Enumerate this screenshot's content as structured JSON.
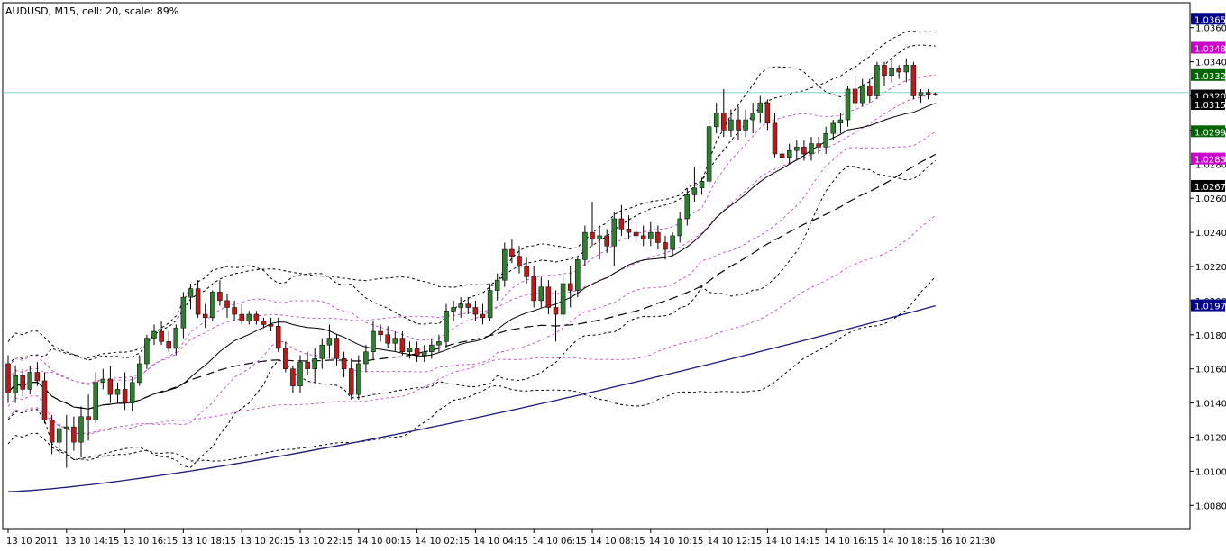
{
  "chart_data": {
    "type": "candlestick",
    "title": "AUDUSD, M15, cell: 20, scale: 89%",
    "ylim": [
      1.0068,
      1.0372
    ],
    "y_ticks": [
      "1.0360",
      "1.0340",
      "1.0320",
      "1.0300",
      "1.0280",
      "1.0260",
      "1.0240",
      "1.0220",
      "1.0200",
      "1.0180",
      "1.0160",
      "1.0140",
      "1.0120",
      "1.0100",
      "1.0080"
    ],
    "x_labels": [
      {
        "i": 0,
        "label": "13 10 2011"
      },
      {
        "i": 8,
        "label": "13 10 14:15"
      },
      {
        "i": 16,
        "label": "13 10 16:15"
      },
      {
        "i": 24,
        "label": "13 10 18:15"
      },
      {
        "i": 32,
        "label": "13 10 20:15"
      },
      {
        "i": 40,
        "label": "13 10 22:15"
      },
      {
        "i": 48,
        "label": "14 10 00:15"
      },
      {
        "i": 56,
        "label": "14 10 02:15"
      },
      {
        "i": 64,
        "label": "14 10 04:15"
      },
      {
        "i": 72,
        "label": "14 10 06:15"
      },
      {
        "i": 80,
        "label": "14 10 08:15"
      },
      {
        "i": 88,
        "label": "14 10 10:15"
      },
      {
        "i": 96,
        "label": "14 10 12:15"
      },
      {
        "i": 104,
        "label": "14 10 14:15"
      },
      {
        "i": 112,
        "label": "14 10 16:15"
      },
      {
        "i": 120,
        "label": "14 10 18:15"
      },
      {
        "i": 128,
        "label": "16 10 21:30"
      }
    ],
    "horizontal_line": 1.0322,
    "price_tags": [
      {
        "value": 1.0365,
        "label": "1.0365",
        "color": "#00008b"
      },
      {
        "value": 1.0348,
        "label": "1.0348",
        "color": "#cc00cc"
      },
      {
        "value": 1.0332,
        "label": "1.0332",
        "color": "#006400"
      },
      {
        "value": 1.032,
        "label": "1.0320",
        "color": "#000000"
      },
      {
        "value": 1.0315,
        "label": "1.0315",
        "color": "#000000"
      },
      {
        "value": 1.0299,
        "label": "1.0299",
        "color": "#006400"
      },
      {
        "value": 1.0283,
        "label": "1.0283",
        "color": "#cc00cc"
      },
      {
        "value": 1.0267,
        "label": "1.0267",
        "color": "#000000"
      },
      {
        "value": 1.0197,
        "label": "1.0197",
        "color": "#00008b"
      }
    ],
    "colors": {
      "bull": "#2e7d32",
      "bear": "#b71c1c",
      "wick": "#000000",
      "grid_hline": "#7fd6c8",
      "sma_long": "#1a1a7a",
      "magenta": "#c060c0"
    },
    "ohlc": [
      [
        1.0163,
        1.0168,
        1.014,
        1.0146
      ],
      [
        1.0146,
        1.0162,
        1.014,
        1.0156
      ],
      [
        1.0156,
        1.016,
        1.0144,
        1.0148
      ],
      [
        1.0148,
        1.0162,
        1.0145,
        1.0158
      ],
      [
        1.0158,
        1.0164,
        1.015,
        1.0153
      ],
      [
        1.0153,
        1.0158,
        1.0128,
        1.013
      ],
      [
        1.013,
        1.0133,
        1.011,
        1.0117
      ],
      [
        1.0117,
        1.0128,
        1.011,
        1.0125
      ],
      [
        1.0125,
        1.0133,
        1.0102,
        1.0126
      ],
      [
        1.0126,
        1.0132,
        1.0112,
        1.0117
      ],
      [
        1.0117,
        1.0138,
        1.0108,
        1.0132
      ],
      [
        1.0132,
        1.0145,
        1.0118,
        1.013
      ],
      [
        1.013,
        1.0158,
        1.0128,
        1.0152
      ],
      [
        1.0152,
        1.016,
        1.0148,
        1.0154
      ],
      [
        1.0154,
        1.0162,
        1.014,
        1.0145
      ],
      [
        1.0145,
        1.0152,
        1.014,
        1.0148
      ],
      [
        1.0148,
        1.0158,
        1.0136,
        1.014
      ],
      [
        1.014,
        1.0155,
        1.0135,
        1.0152
      ],
      [
        1.0152,
        1.0168,
        1.015,
        1.0163
      ],
      [
        1.0163,
        1.018,
        1.016,
        1.0178
      ],
      [
        1.0178,
        1.0186,
        1.0174,
        1.0182
      ],
      [
        1.0182,
        1.0188,
        1.0174,
        1.0176
      ],
      [
        1.0176,
        1.0182,
        1.017,
        1.0172
      ],
      [
        1.0172,
        1.0186,
        1.0168,
        1.0184
      ],
      [
        1.0184,
        1.0205,
        1.0178,
        1.0202
      ],
      [
        1.0202,
        1.021,
        1.0195,
        1.0207
      ],
      [
        1.0207,
        1.0212,
        1.019,
        1.0192
      ],
      [
        1.0192,
        1.0198,
        1.0184,
        1.019
      ],
      [
        1.019,
        1.0206,
        1.0188,
        1.0205
      ],
      [
        1.0205,
        1.0212,
        1.0197,
        1.02
      ],
      [
        1.02,
        1.0204,
        1.019,
        1.0196
      ],
      [
        1.0196,
        1.02,
        1.0188,
        1.0192
      ],
      [
        1.0192,
        1.0198,
        1.0186,
        1.0188
      ],
      [
        1.0188,
        1.0194,
        1.0186,
        1.0192
      ],
      [
        1.0192,
        1.0194,
        1.0186,
        1.0188
      ],
      [
        1.0188,
        1.019,
        1.0184,
        1.0186
      ],
      [
        1.0186,
        1.019,
        1.0182,
        1.0185
      ],
      [
        1.0185,
        1.019,
        1.017,
        1.0172
      ],
      [
        1.0172,
        1.0176,
        1.0158,
        1.016
      ],
      [
        1.016,
        1.0162,
        1.0146,
        1.015
      ],
      [
        1.015,
        1.0168,
        1.0146,
        1.0164
      ],
      [
        1.0164,
        1.017,
        1.0156,
        1.016
      ],
      [
        1.016,
        1.0172,
        1.0152,
        1.0166
      ],
      [
        1.0166,
        1.0178,
        1.016,
        1.0174
      ],
      [
        1.0174,
        1.0186,
        1.0166,
        1.0178
      ],
      [
        1.0178,
        1.018,
        1.0162,
        1.0166
      ],
      [
        1.0166,
        1.017,
        1.0155,
        1.016
      ],
      [
        1.016,
        1.0166,
        1.0142,
        1.0145
      ],
      [
        1.0145,
        1.0168,
        1.0142,
        1.0163
      ],
      [
        1.0163,
        1.0174,
        1.0158,
        1.017
      ],
      [
        1.017,
        1.0188,
        1.0165,
        1.0182
      ],
      [
        1.0182,
        1.0186,
        1.0176,
        1.018
      ],
      [
        1.018,
        1.0185,
        1.0172,
        1.0175
      ],
      [
        1.0175,
        1.0182,
        1.017,
        1.0178
      ],
      [
        1.0178,
        1.0182,
        1.0168,
        1.017
      ],
      [
        1.017,
        1.0176,
        1.0166,
        1.0172
      ],
      [
        1.0172,
        1.0176,
        1.0164,
        1.0168
      ],
      [
        1.0168,
        1.0174,
        1.0164,
        1.017
      ],
      [
        1.017,
        1.0178,
        1.0166,
        1.0174
      ],
      [
        1.0174,
        1.018,
        1.017,
        1.0176
      ],
      [
        1.0176,
        1.0198,
        1.0172,
        1.0194
      ],
      [
        1.0194,
        1.02,
        1.0188,
        1.0196
      ],
      [
        1.0196,
        1.0202,
        1.019,
        1.0198
      ],
      [
        1.0198,
        1.0202,
        1.0192,
        1.0196
      ],
      [
        1.0196,
        1.02,
        1.0188,
        1.0192
      ],
      [
        1.0192,
        1.0198,
        1.0186,
        1.019
      ],
      [
        1.019,
        1.021,
        1.0188,
        1.0206
      ],
      [
        1.0206,
        1.0216,
        1.02,
        1.0212
      ],
      [
        1.0212,
        1.0234,
        1.0208,
        1.023
      ],
      [
        1.023,
        1.0236,
        1.0222,
        1.0226
      ],
      [
        1.0226,
        1.0232,
        1.0216,
        1.022
      ],
      [
        1.022,
        1.0225,
        1.021,
        1.0214
      ],
      [
        1.0214,
        1.022,
        1.0196,
        1.02
      ],
      [
        1.02,
        1.0214,
        1.0196,
        1.0208
      ],
      [
        1.0208,
        1.0212,
        1.0192,
        1.0196
      ],
      [
        1.0196,
        1.0206,
        1.0176,
        1.0192
      ],
      [
        1.0192,
        1.0214,
        1.0188,
        1.021
      ],
      [
        1.021,
        1.022,
        1.0196,
        1.0206
      ],
      [
        1.0206,
        1.0226,
        1.0202,
        1.0224
      ],
      [
        1.0224,
        1.0244,
        1.022,
        1.024
      ],
      [
        1.024,
        1.0258,
        1.0232,
        1.0236
      ],
      [
        1.0236,
        1.0244,
        1.0224,
        1.0238
      ],
      [
        1.0238,
        1.0242,
        1.0228,
        1.0232
      ],
      [
        1.0232,
        1.0252,
        1.022,
        1.0248
      ],
      [
        1.0248,
        1.0256,
        1.0238,
        1.0242
      ],
      [
        1.0242,
        1.025,
        1.0236,
        1.024
      ],
      [
        1.024,
        1.0246,
        1.0234,
        1.0238
      ],
      [
        1.0238,
        1.0244,
        1.0232,
        1.0236
      ],
      [
        1.0236,
        1.0246,
        1.0232,
        1.024
      ],
      [
        1.024,
        1.0244,
        1.023,
        1.0234
      ],
      [
        1.0234,
        1.0238,
        1.0224,
        1.023
      ],
      [
        1.023,
        1.024,
        1.0226,
        1.0238
      ],
      [
        1.0238,
        1.0252,
        1.0234,
        1.0248
      ],
      [
        1.0248,
        1.0266,
        1.0244,
        1.0262
      ],
      [
        1.0262,
        1.0278,
        1.0258,
        1.0266
      ],
      [
        1.0266,
        1.0272,
        1.0262,
        1.027
      ],
      [
        1.027,
        1.0306,
        1.0266,
        1.0302
      ],
      [
        1.0302,
        1.0316,
        1.0298,
        1.031
      ],
      [
        1.031,
        1.0324,
        1.0296,
        1.03
      ],
      [
        1.03,
        1.0312,
        1.0296,
        1.0306
      ],
      [
        1.0306,
        1.0314,
        1.0294,
        1.03
      ],
      [
        1.03,
        1.0312,
        1.0296,
        1.0306
      ],
      [
        1.0306,
        1.0316,
        1.0298,
        1.031
      ],
      [
        1.031,
        1.032,
        1.0304,
        1.0316
      ],
      [
        1.0316,
        1.0318,
        1.03,
        1.0304
      ],
      [
        1.0304,
        1.031,
        1.0284,
        1.0286
      ],
      [
        1.0286,
        1.029,
        1.028,
        1.0284
      ],
      [
        1.0284,
        1.0292,
        1.028,
        1.0288
      ],
      [
        1.0288,
        1.0294,
        1.0282,
        1.029
      ],
      [
        1.029,
        1.0294,
        1.0282,
        1.0286
      ],
      [
        1.0286,
        1.0296,
        1.0282,
        1.0292
      ],
      [
        1.0292,
        1.0296,
        1.0286,
        1.029
      ],
      [
        1.029,
        1.0302,
        1.0286,
        1.0298
      ],
      [
        1.0298,
        1.0306,
        1.0294,
        1.0304
      ],
      [
        1.0304,
        1.031,
        1.0298,
        1.0306
      ],
      [
        1.0306,
        1.0326,
        1.0302,
        1.0324
      ],
      [
        1.0324,
        1.0332,
        1.0312,
        1.0316
      ],
      [
        1.0316,
        1.033,
        1.0314,
        1.0326
      ],
      [
        1.0326,
        1.033,
        1.0316,
        1.032
      ],
      [
        1.032,
        1.034,
        1.0318,
        1.0338
      ],
      [
        1.0338,
        1.034,
        1.0326,
        1.0332
      ],
      [
        1.0332,
        1.0342,
        1.0328,
        1.0336
      ],
      [
        1.0336,
        1.0338,
        1.033,
        1.0334
      ],
      [
        1.0334,
        1.0342,
        1.0328,
        1.0338
      ],
      [
        1.0338,
        1.034,
        1.0318,
        1.032
      ],
      [
        1.032,
        1.0324,
        1.0316,
        1.0322
      ],
      [
        1.0322,
        1.0324,
        1.0318,
        1.0321
      ],
      [
        1.0321,
        1.0322,
        1.032,
        1.0321
      ]
    ]
  }
}
